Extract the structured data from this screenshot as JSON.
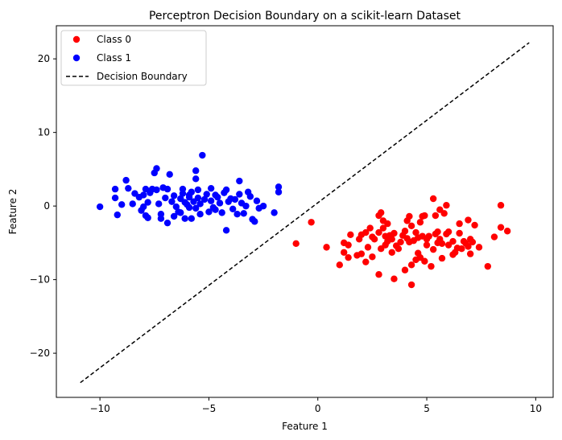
{
  "chart_data": {
    "type": "scatter",
    "title": "Perceptron Decision Boundary on a scikit-learn Dataset",
    "xlabel": "Feature 1",
    "ylabel": "Feature 2",
    "xlim": [
      -12.0,
      10.8
    ],
    "ylim": [
      -26.0,
      24.5
    ],
    "xticks": [
      -10,
      -5,
      0,
      5,
      10
    ],
    "yticks": [
      -20,
      -10,
      0,
      10,
      20
    ],
    "xtick_labels": [
      "−10",
      "−5",
      "0",
      "5",
      "10"
    ],
    "ytick_labels": [
      "−20",
      "−10",
      "0",
      "10",
      "20"
    ],
    "grid": false,
    "legend": "top-left",
    "colors": {
      "class0": "#ff0000",
      "class1": "#0000ff",
      "boundary": "#000000"
    },
    "series": [
      {
        "name": "Class 0",
        "points": [
          [
            -1.0,
            -5.1
          ],
          [
            -0.3,
            -2.2
          ],
          [
            0.4,
            -5.6
          ],
          [
            1.0,
            -8.0
          ],
          [
            1.2,
            -5.0
          ],
          [
            1.2,
            -6.3
          ],
          [
            1.4,
            -5.3
          ],
          [
            1.4,
            -7.0
          ],
          [
            1.5,
            -3.9
          ],
          [
            1.8,
            -6.7
          ],
          [
            1.9,
            -4.5
          ],
          [
            2.0,
            -3.9
          ],
          [
            2.0,
            -6.5
          ],
          [
            2.2,
            -3.6
          ],
          [
            2.3,
            -5.6
          ],
          [
            2.2,
            -7.6
          ],
          [
            2.4,
            -3.0
          ],
          [
            2.5,
            -4.2
          ],
          [
            2.6,
            -4.5
          ],
          [
            2.5,
            -6.9
          ],
          [
            2.8,
            -1.3
          ],
          [
            2.9,
            -0.9
          ],
          [
            2.8,
            -3.6
          ],
          [
            2.9,
            -5.8
          ],
          [
            2.8,
            -9.3
          ],
          [
            3.0,
            -2.0
          ],
          [
            3.1,
            -4.1
          ],
          [
            3.1,
            -5.3
          ],
          [
            3.2,
            -4.8
          ],
          [
            3.2,
            -2.4
          ],
          [
            3.3,
            -4.0
          ],
          [
            3.4,
            -6.3
          ],
          [
            3.4,
            -4.5
          ],
          [
            3.5,
            -3.7
          ],
          [
            3.5,
            -9.9
          ],
          [
            3.6,
            -5.4
          ],
          [
            3.7,
            -5.8
          ],
          [
            3.8,
            -4.9
          ],
          [
            3.9,
            -4.0
          ],
          [
            4.0,
            -3.4
          ],
          [
            4.0,
            -8.7
          ],
          [
            4.1,
            -2.0
          ],
          [
            4.1,
            -4.4
          ],
          [
            4.2,
            -1.4
          ],
          [
            4.2,
            -4.9
          ],
          [
            4.3,
            -2.7
          ],
          [
            4.3,
            -8.0
          ],
          [
            4.3,
            -10.7
          ],
          [
            4.4,
            -4.7
          ],
          [
            4.5,
            -3.6
          ],
          [
            4.6,
            -4.3
          ],
          [
            4.6,
            -6.4
          ],
          [
            4.7,
            -7.0
          ],
          [
            4.7,
            -2.2
          ],
          [
            4.8,
            -1.4
          ],
          [
            4.8,
            -4.1
          ],
          [
            4.9,
            -7.5
          ],
          [
            4.9,
            -1.3
          ],
          [
            5.0,
            -4.5
          ],
          [
            5.0,
            -5.3
          ],
          [
            5.1,
            -4.1
          ],
          [
            5.2,
            -8.2
          ],
          [
            5.3,
            1.0
          ],
          [
            5.3,
            -5.9
          ],
          [
            5.4,
            -1.3
          ],
          [
            5.4,
            -3.8
          ],
          [
            5.5,
            -5.0
          ],
          [
            5.5,
            -3.5
          ],
          [
            5.6,
            -0.5
          ],
          [
            5.6,
            -4.5
          ],
          [
            5.7,
            -7.1
          ],
          [
            5.8,
            -1.0
          ],
          [
            5.9,
            0.1
          ],
          [
            5.9,
            -3.8
          ],
          [
            6.0,
            -5.3
          ],
          [
            6.2,
            -6.6
          ],
          [
            6.2,
            -4.8
          ],
          [
            6.3,
            -6.3
          ],
          [
            6.4,
            -5.7
          ],
          [
            6.5,
            -2.4
          ],
          [
            6.5,
            -3.7
          ],
          [
            6.6,
            -5.8
          ],
          [
            6.7,
            -4.8
          ],
          [
            6.8,
            -5.1
          ],
          [
            6.9,
            -1.9
          ],
          [
            6.9,
            -5.5
          ],
          [
            7.0,
            -4.5
          ],
          [
            7.0,
            -6.5
          ],
          [
            7.1,
            -4.9
          ],
          [
            7.2,
            -2.6
          ],
          [
            7.4,
            -5.6
          ],
          [
            7.8,
            -8.2
          ],
          [
            8.1,
            -4.2
          ],
          [
            8.4,
            0.1
          ],
          [
            8.4,
            -2.9
          ],
          [
            8.7,
            -3.4
          ],
          [
            5.7,
            -5.1
          ],
          [
            3.0,
            -3.0
          ],
          [
            4.5,
            -7.3
          ],
          [
            6.0,
            -3.5
          ]
        ]
      },
      {
        "name": "Class 1",
        "points": [
          [
            -10.0,
            -0.1
          ],
          [
            -9.3,
            2.3
          ],
          [
            -9.3,
            1.1
          ],
          [
            -9.2,
            -1.2
          ],
          [
            -9.0,
            0.2
          ],
          [
            -8.8,
            3.5
          ],
          [
            -8.7,
            2.4
          ],
          [
            -8.5,
            0.3
          ],
          [
            -8.4,
            1.7
          ],
          [
            -8.2,
            1.2
          ],
          [
            -8.1,
            -0.6
          ],
          [
            -8.0,
            -0.1
          ],
          [
            -8.0,
            1.5
          ],
          [
            -7.9,
            2.3
          ],
          [
            -7.9,
            -1.3
          ],
          [
            -7.8,
            -1.6
          ],
          [
            -7.8,
            0.5
          ],
          [
            -7.7,
            1.8
          ],
          [
            -7.6,
            2.3
          ],
          [
            -7.5,
            4.5
          ],
          [
            -7.4,
            5.1
          ],
          [
            -7.4,
            2.2
          ],
          [
            -7.3,
            0.3
          ],
          [
            -7.2,
            -1.1
          ],
          [
            -7.2,
            -1.7
          ],
          [
            -7.1,
            2.5
          ],
          [
            -7.0,
            1.1
          ],
          [
            -6.9,
            2.3
          ],
          [
            -6.9,
            -2.3
          ],
          [
            -6.8,
            4.3
          ],
          [
            -6.7,
            0.6
          ],
          [
            -6.6,
            1.4
          ],
          [
            -6.6,
            -1.4
          ],
          [
            -6.5,
            -0.1
          ],
          [
            -6.4,
            -0.8
          ],
          [
            -6.3,
            1.0
          ],
          [
            -6.2,
            1.7
          ],
          [
            -6.2,
            2.3
          ],
          [
            -6.1,
            -1.7
          ],
          [
            -6.1,
            0.5
          ],
          [
            -6.0,
            0.2
          ],
          [
            -5.9,
            -0.2
          ],
          [
            -5.9,
            1.2
          ],
          [
            -5.8,
            -1.7
          ],
          [
            -5.8,
            1.9
          ],
          [
            -5.7,
            0.6
          ],
          [
            -5.6,
            3.7
          ],
          [
            -5.6,
            4.8
          ],
          [
            -5.6,
            -0.3
          ],
          [
            -5.5,
            1.1
          ],
          [
            -5.5,
            2.2
          ],
          [
            -5.4,
            0.3
          ],
          [
            -5.4,
            -1.1
          ],
          [
            -5.3,
            6.9
          ],
          [
            -5.2,
            0.9
          ],
          [
            -5.1,
            1.6
          ],
          [
            -5.0,
            -0.8
          ],
          [
            -4.9,
            0.7
          ],
          [
            -4.9,
            2.4
          ],
          [
            -4.8,
            -0.2
          ],
          [
            -4.7,
            1.5
          ],
          [
            -4.7,
            -0.5
          ],
          [
            -4.6,
            1.2
          ],
          [
            -4.5,
            0.4
          ],
          [
            -4.4,
            -0.9
          ],
          [
            -4.3,
            1.8
          ],
          [
            -4.2,
            2.2
          ],
          [
            -4.2,
            -3.3
          ],
          [
            -4.1,
            0.6
          ],
          [
            -4.0,
            1.0
          ],
          [
            -3.9,
            -0.4
          ],
          [
            -3.8,
            0.9
          ],
          [
            -3.7,
            -1.1
          ],
          [
            -3.6,
            1.6
          ],
          [
            -3.6,
            3.4
          ],
          [
            -3.5,
            0.4
          ],
          [
            -3.4,
            -1.0
          ],
          [
            -3.3,
            0.0
          ],
          [
            -3.2,
            1.9
          ],
          [
            -3.1,
            1.3
          ],
          [
            -3.0,
            -1.8
          ],
          [
            -2.9,
            -2.1
          ],
          [
            -2.8,
            0.7
          ],
          [
            -2.7,
            -0.3
          ],
          [
            -2.5,
            0.0
          ],
          [
            -2.0,
            -0.9
          ],
          [
            -1.8,
            2.6
          ],
          [
            -1.8,
            1.9
          ],
          [
            -6.3,
            -0.9
          ],
          [
            -5.9,
            1.5
          ]
        ]
      }
    ],
    "boundary": {
      "name": "Decision Boundary",
      "style": "dashed",
      "x": [
        -10.9,
        9.7
      ],
      "y": [
        -24.0,
        22.2
      ]
    }
  }
}
